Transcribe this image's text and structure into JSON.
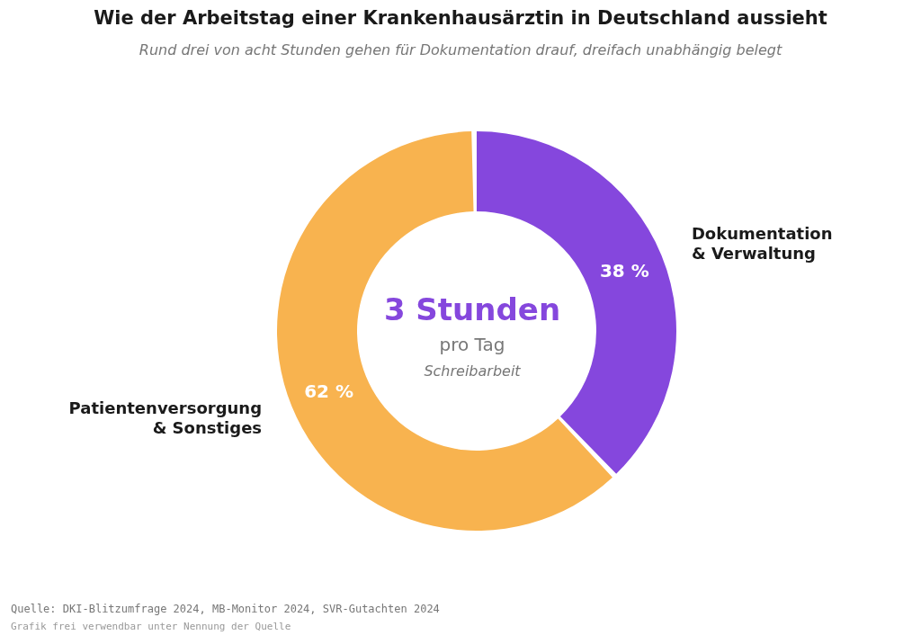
{
  "chart_data": {
    "type": "donut",
    "title": "Wie der Arbeitstag einer Krankenhausärztin in Deutschland aussieht",
    "subtitle": "Rund drei von acht Stunden gehen für Dokumentation drauf, dreifach unabhängig belegt",
    "categories": [
      "Dokumentation & Verwaltung",
      "Patientenversorgung & Sonstiges"
    ],
    "values": [
      38,
      62
    ],
    "colors": [
      "#8547dd",
      "#f8b34f"
    ],
    "value_labels": [
      "38 %",
      "62 %"
    ],
    "annotations": [
      "3 Stunden",
      "pro Tag",
      "Schreibarbeit",
      "Quelle: DKI-Blitzumfrage 2024, MB-Monitor 2024, SVR-Gutachten 2024",
      "Grafik frei verwendbar unter Nennung der Quelle"
    ]
  }
}
